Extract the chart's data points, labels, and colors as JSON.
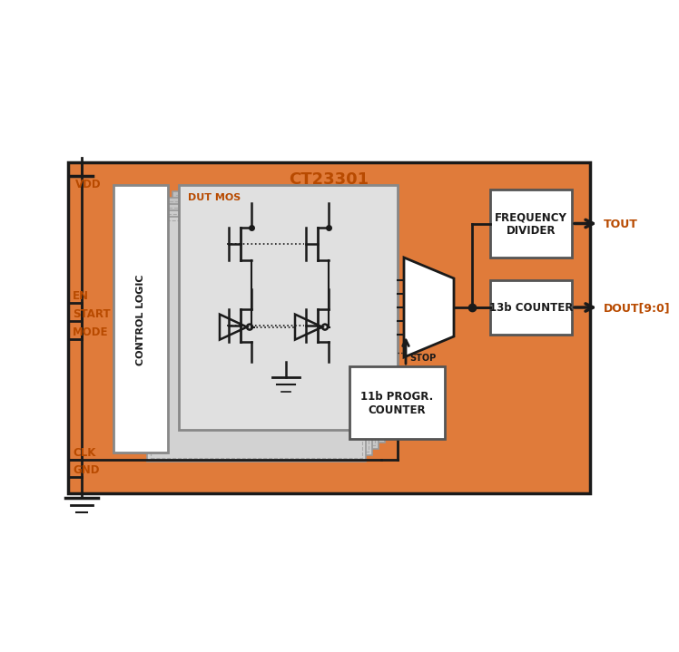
{
  "bg_color": "#ffffff",
  "chip_bg": "#E07B3A",
  "chip_border": "#1a1a1a",
  "box_bg": "#ffffff",
  "panel_bg": "#D5D5D5",
  "panel_bg2": "#C8C8C8",
  "text_orange": "#B84A00",
  "text_dark": "#1a1a1a",
  "title": "CT23301",
  "label_tout": "TOUT",
  "label_dout": "DOUT[9:0]",
  "label_stop": "STOP",
  "label_dut_mos": "DUT MOS",
  "label_control": "CONTROL LOGIC",
  "label_freq": "FREQUENCY\nDIVIDER",
  "label_13b": "13b COUNTER",
  "label_11b": "11b PROGR.\nCOUNTER"
}
